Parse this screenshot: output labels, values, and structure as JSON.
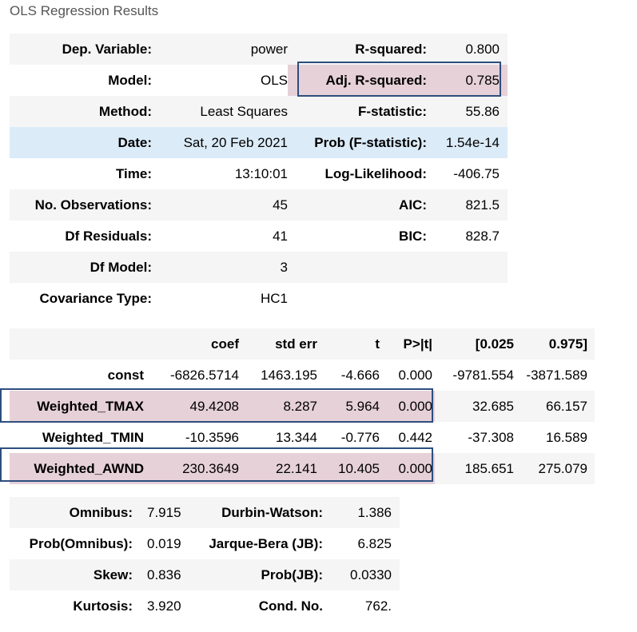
{
  "caption": "OLS Regression Results",
  "summary_rows": [
    {
      "l1": "Dep. Variable:",
      "v1": "power",
      "l2": "R-squared:",
      "v2": "0.800"
    },
    {
      "l1": "Model:",
      "v1": "OLS",
      "l2": "Adj. R-squared:",
      "v2": "0.785"
    },
    {
      "l1": "Method:",
      "v1": "Least Squares",
      "l2": "F-statistic:",
      "v2": "55.86"
    },
    {
      "l1": "Date:",
      "v1": "Sat, 20 Feb 2021",
      "l2": "Prob (F-statistic):",
      "v2": "1.54e-14"
    },
    {
      "l1": "Time:",
      "v1": "13:10:01",
      "l2": "Log-Likelihood:",
      "v2": "-406.75"
    },
    {
      "l1": "No. Observations:",
      "v1": "45",
      "l2": "AIC:",
      "v2": "821.5"
    },
    {
      "l1": "Df Residuals:",
      "v1": "41",
      "l2": "BIC:",
      "v2": "828.7"
    },
    {
      "l1": "Df Model:",
      "v1": "3",
      "l2": "",
      "v2": ""
    },
    {
      "l1": "Covariance Type:",
      "v1": "HC1",
      "l2": "",
      "v2": ""
    }
  ],
  "coef_headers": [
    "",
    "coef",
    "std err",
    "t",
    "P>|t|",
    "[0.025",
    "0.975]"
  ],
  "coef_rows": [
    {
      "name": "const",
      "coef": "-6826.5714",
      "std_err": "1463.195",
      "t": "-4.666",
      "p": "0.000",
      "lo": "-9781.554",
      "hi": "-3871.589"
    },
    {
      "name": "Weighted_TMAX",
      "coef": "49.4208",
      "std_err": "8.287",
      "t": "5.964",
      "p": "0.000",
      "lo": "32.685",
      "hi": "66.157"
    },
    {
      "name": "Weighted_TMIN",
      "coef": "-10.3596",
      "std_err": "13.344",
      "t": "-0.776",
      "p": "0.442",
      "lo": "-37.308",
      "hi": "16.589"
    },
    {
      "name": "Weighted_AWND",
      "coef": "230.3649",
      "std_err": "22.141",
      "t": "10.405",
      "p": "0.000",
      "lo": "185.651",
      "hi": "275.079"
    }
  ],
  "diag_rows": [
    {
      "l1": "Omnibus:",
      "v1": "7.915",
      "l2": "Durbin-Watson:",
      "v2": "1.386"
    },
    {
      "l1": "Prob(Omnibus):",
      "v1": "0.019",
      "l2": "Jarque-Bera (JB):",
      "v2": "6.825"
    },
    {
      "l1": "Skew:",
      "v1": "0.836",
      "l2": "Prob(JB):",
      "v2": "0.0330"
    },
    {
      "l1": "Kurtosis:",
      "v1": "3.920",
      "l2": "Cond. No.",
      "v2": "762."
    }
  ],
  "colors": {
    "highlight_fill": "#e6d1d8",
    "highlight_border": "#2d4e7e",
    "hover_row": "#dbebf8",
    "stripe": "#f5f5f5"
  }
}
